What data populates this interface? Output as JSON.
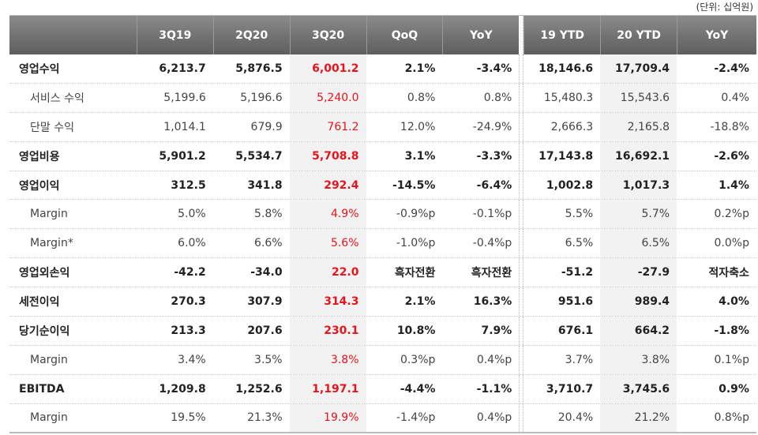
{
  "unit_label": "(단위: 십억원)",
  "headers": [
    "",
    "3Q19",
    "2Q20",
    "3Q20",
    "QoQ",
    "YoY",
    "19 YTD",
    "20 YTD",
    "YoY"
  ],
  "colors": {
    "header_bg": "#6b6b6b",
    "highlight_text": "#e8141c",
    "highlight_bg": "#f2f2f2"
  },
  "rows": [
    {
      "type": "main",
      "label": "영업수익",
      "values": [
        "6,213.7",
        "5,876.5",
        "6,001.2",
        "2.1%",
        "-3.4%",
        "18,146.6",
        "17,709.4",
        "-2.4%"
      ]
    },
    {
      "type": "sub",
      "label": "서비스 수익",
      "values": [
        "5,199.6",
        "5,196.6",
        "5,240.0",
        "0.8%",
        "0.8%",
        "15,480.3",
        "15,543.6",
        "0.4%"
      ]
    },
    {
      "type": "sub",
      "label": "단말 수익",
      "values": [
        "1,014.1",
        "679.9",
        "761.2",
        "12.0%",
        "-24.9%",
        "2,666.3",
        "2,165.8",
        "-18.8%"
      ]
    },
    {
      "type": "main",
      "label": "영업비용",
      "values": [
        "5,901.2",
        "5,534.7",
        "5,708.8",
        "3.1%",
        "-3.3%",
        "17,143.8",
        "16,692.1",
        "-2.6%"
      ]
    },
    {
      "type": "main",
      "label": "영업이익",
      "values": [
        "312.5",
        "341.8",
        "292.4",
        "-14.5%",
        "-6.4%",
        "1,002.8",
        "1,017.3",
        "1.4%"
      ]
    },
    {
      "type": "sub",
      "label": "Margin",
      "values": [
        "5.0%",
        "5.8%",
        "4.9%",
        "-0.9%p",
        "-0.1%p",
        "5.5%",
        "5.7%",
        "0.2%p"
      ]
    },
    {
      "type": "sub",
      "label": "Margin*",
      "values": [
        "6.0%",
        "6.6%",
        "5.6%",
        "-1.0%p",
        "-0.4%p",
        "6.5%",
        "6.5%",
        "0.0%p"
      ]
    },
    {
      "type": "main",
      "label": "영업외손익",
      "values": [
        "-42.2",
        "-34.0",
        "22.0",
        "흑자전환",
        "흑자전환",
        "-51.2",
        "-27.9",
        "적자축소"
      ]
    },
    {
      "type": "main",
      "label": "세전이익",
      "values": [
        "270.3",
        "307.9",
        "314.3",
        "2.1%",
        "16.3%",
        "951.6",
        "989.4",
        "4.0%"
      ]
    },
    {
      "type": "main",
      "label": "당기순이익",
      "values": [
        "213.3",
        "207.6",
        "230.1",
        "10.8%",
        "7.9%",
        "676.1",
        "664.2",
        "-1.8%"
      ]
    },
    {
      "type": "sub",
      "label": "Margin",
      "values": [
        "3.4%",
        "3.5%",
        "3.8%",
        "0.3%p",
        "0.4%p",
        "3.7%",
        "3.8%",
        "0.1%p"
      ]
    },
    {
      "type": "main",
      "label": "EBITDA",
      "values": [
        "1,209.8",
        "1,252.6",
        "1,197.1",
        "-4.4%",
        "-1.1%",
        "3,710.7",
        "3,745.6",
        "0.9%"
      ]
    },
    {
      "type": "sub",
      "label": "Margin",
      "values": [
        "19.5%",
        "21.3%",
        "19.9%",
        "-1.4%p",
        "0.4%p",
        "20.4%",
        "21.2%",
        "0.8%p"
      ]
    }
  ]
}
